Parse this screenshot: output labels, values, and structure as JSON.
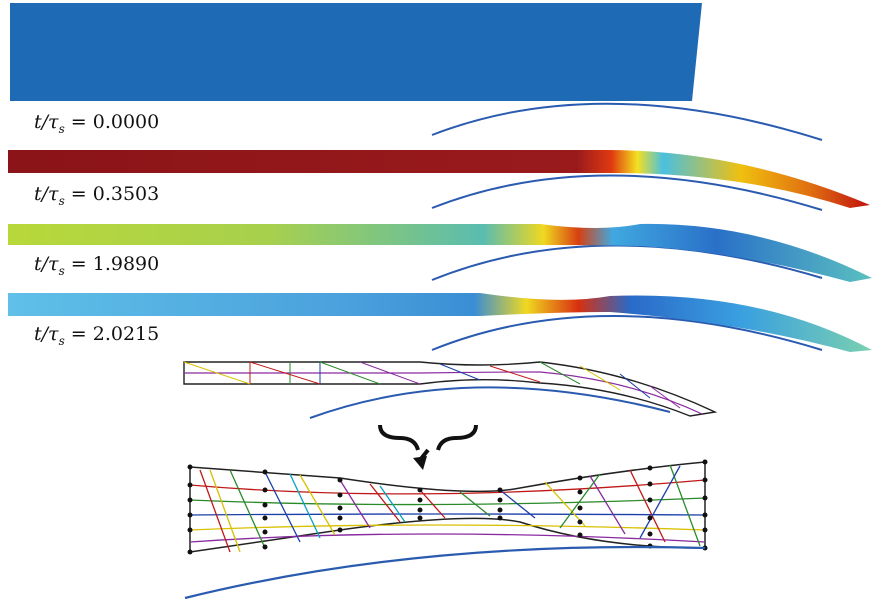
{
  "snapshots": [
    {
      "label_prefix": "t/τ",
      "label_sub": "s",
      "value": "= 0.0000"
    },
    {
      "label_prefix": "t/τ",
      "label_sub": "s",
      "value": "= 0.3503"
    },
    {
      "label_prefix": "t/τ",
      "label_sub": "s",
      "value": "= 1.9890"
    },
    {
      "label_prefix": "t/τ",
      "label_sub": "s",
      "value": "= 2.0215"
    }
  ],
  "colors": {
    "initial_bar": "#1f6ab4",
    "rigid_surface": "#2a5bb0",
    "hot": "#c0101a",
    "mid": "#e8d800",
    "cool": "#3aa8e0",
    "cold": "#1a3fa8"
  },
  "icons": {
    "zoom_brace": "curly-brace-arrow-icon"
  }
}
